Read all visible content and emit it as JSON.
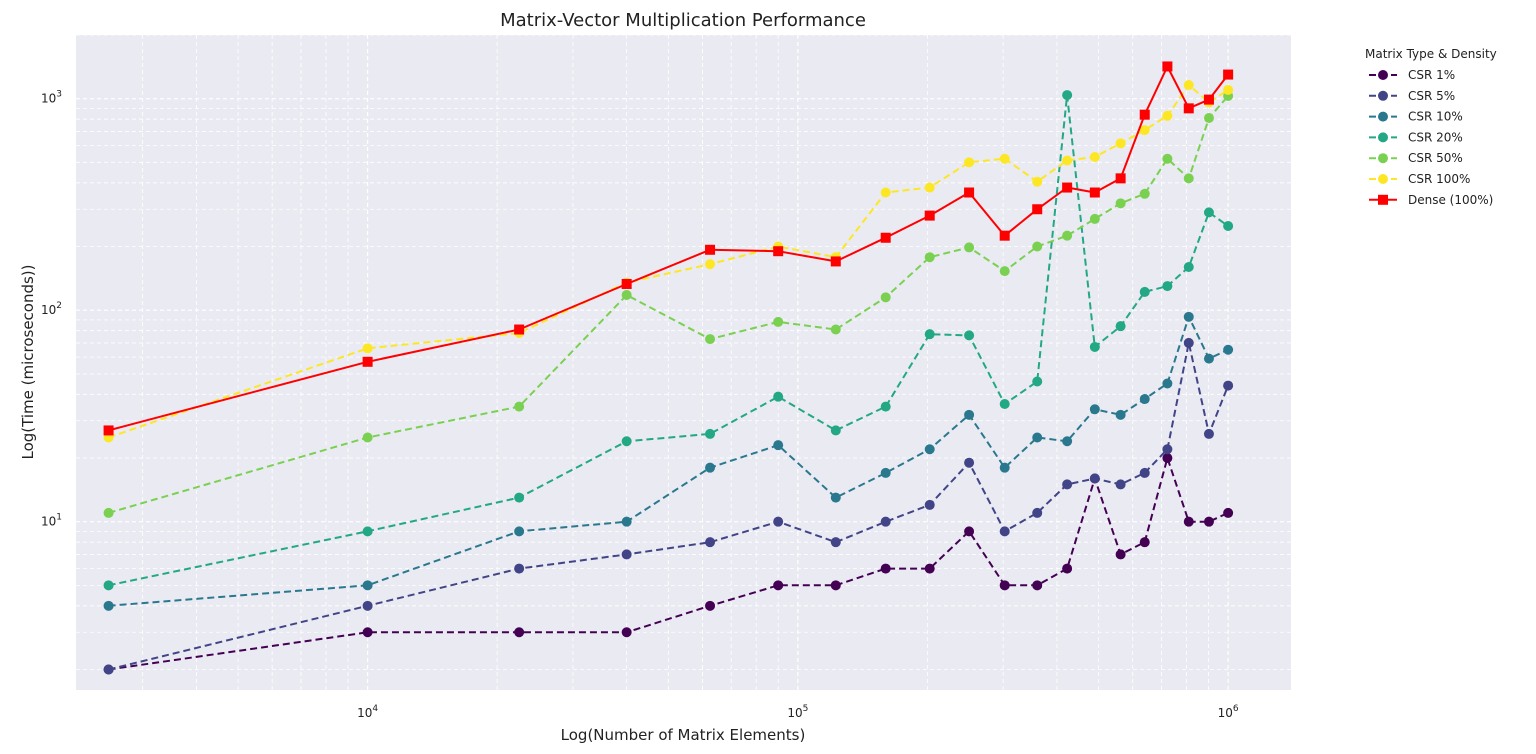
{
  "chart_data": {
    "type": "line",
    "title": "Matrix-Vector Multiplication Performance",
    "xlabel": "Log(Number of Matrix Elements)",
    "ylabel": "Log(Time (microseconds))",
    "xscale": "log",
    "yscale": "log",
    "xlim": [
      2100,
      1400000
    ],
    "ylim": [
      1.6,
      2000
    ],
    "grid": true,
    "legend": {
      "title": "Matrix Type & Density",
      "placement": "outside-right"
    },
    "x": [
      2500,
      10000,
      22500,
      40000,
      62500,
      90000,
      122500,
      160000,
      202500,
      250000,
      302500,
      360000,
      422500,
      490000,
      562500,
      640000,
      722500,
      810000,
      902500,
      1000000
    ],
    "series": [
      {
        "name": "CSR 1%",
        "color": "#440154",
        "style": "dashed",
        "marker": "circle",
        "values": [
          2,
          3,
          3,
          3,
          4,
          5,
          5,
          6,
          6,
          9,
          5,
          5,
          6,
          16,
          7,
          8,
          20,
          10,
          10,
          11
        ]
      },
      {
        "name": "CSR 5%",
        "color": "#414487",
        "style": "dashed",
        "marker": "circle",
        "values": [
          2,
          4,
          6,
          7,
          8,
          10,
          8,
          10,
          12,
          19,
          9,
          11,
          15,
          16,
          15,
          17,
          22,
          70,
          26,
          44
        ]
      },
      {
        "name": "CSR 10%",
        "color": "#2a788e",
        "style": "dashed",
        "marker": "circle",
        "values": [
          4,
          5,
          9,
          10,
          18,
          23,
          13,
          17,
          22,
          32,
          18,
          25,
          24,
          34,
          32,
          38,
          45,
          93,
          59,
          65
        ]
      },
      {
        "name": "CSR 20%",
        "color": "#22a884",
        "style": "dashed",
        "marker": "circle",
        "values": [
          5,
          9,
          13,
          24,
          26,
          39,
          27,
          35,
          77,
          76,
          36,
          46,
          1040,
          67,
          84,
          122,
          130,
          160,
          290,
          250
        ]
      },
      {
        "name": "CSR 50%",
        "color": "#7ad151",
        "style": "dashed",
        "marker": "circle",
        "values": [
          11,
          25,
          35,
          118,
          73,
          88,
          81,
          115,
          178,
          198,
          153,
          200,
          225,
          270,
          320,
          355,
          520,
          420,
          810,
          1030
        ]
      },
      {
        "name": "CSR 100%",
        "color": "#fde725",
        "style": "dashed",
        "marker": "circle",
        "values": [
          25,
          66,
          78,
          135,
          165,
          200,
          178,
          360,
          380,
          500,
          520,
          405,
          510,
          530,
          615,
          710,
          830,
          1160,
          960,
          1100
        ]
      },
      {
        "name": "Dense (100%)",
        "color": "#ff0000",
        "style": "solid",
        "marker": "square",
        "values": [
          27,
          57,
          81,
          133,
          193,
          190,
          170,
          220,
          280,
          360,
          225,
          300,
          380,
          360,
          420,
          840,
          1420,
          900,
          990,
          1300
        ]
      }
    ],
    "x_ticks": [
      {
        "value": 10000,
        "base": "10",
        "exp": "4"
      },
      {
        "value": 100000,
        "base": "10",
        "exp": "5"
      },
      {
        "value": 1000000,
        "base": "10",
        "exp": "6"
      }
    ],
    "y_ticks": [
      {
        "value": 10,
        "base": "10",
        "exp": "1"
      },
      {
        "value": 100,
        "base": "10",
        "exp": "2"
      },
      {
        "value": 1000,
        "base": "10",
        "exp": "3"
      }
    ]
  }
}
